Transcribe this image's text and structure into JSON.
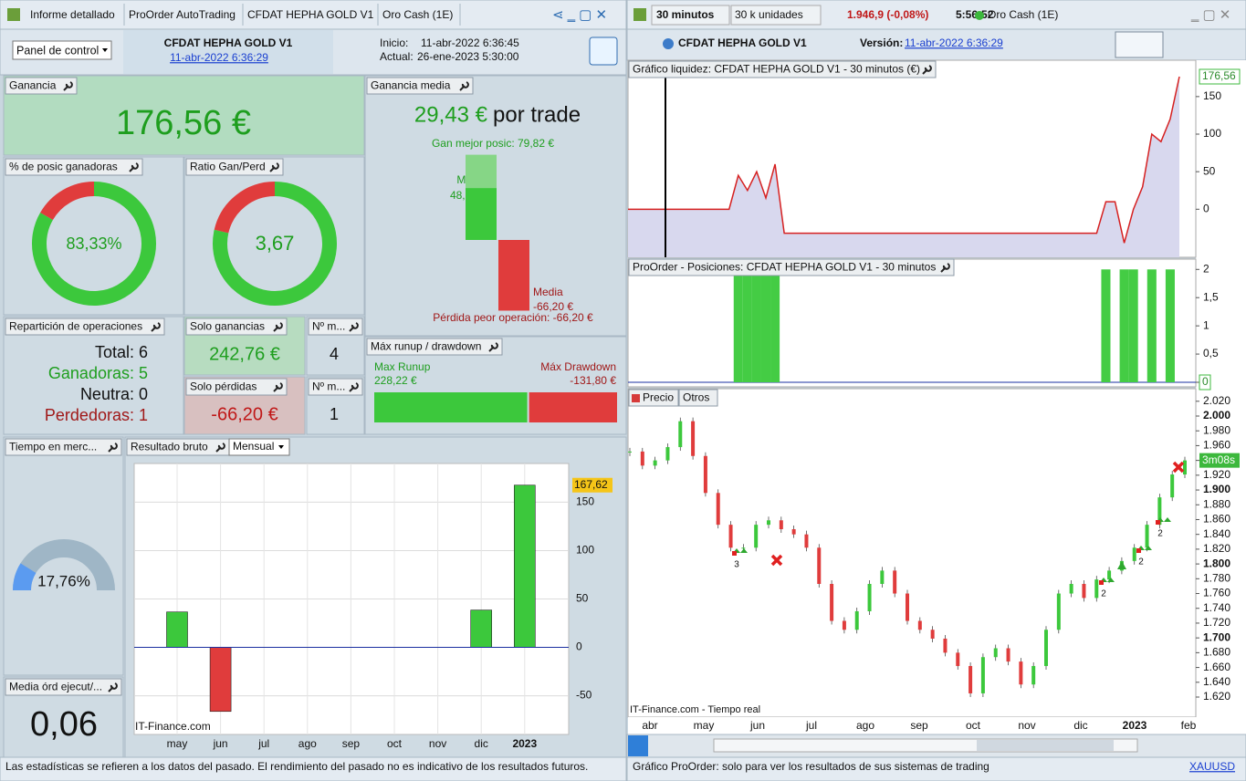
{
  "left": {
    "tabs": [
      "Informe detallado",
      "ProOrder AutoTrading",
      "CFDAT HEPHA GOLD V1",
      "Oro Cash (1E)"
    ],
    "header": {
      "dropdown": "Panel de control",
      "system": "CFDAT HEPHA GOLD V1",
      "version_link": "11-abr-2022 6:36:29",
      "start_label": "Inicio:",
      "start": "11-abr-2022 6:36:45",
      "current_label": "Actual:",
      "current": "26-ene-2023 5:30:00"
    },
    "ganancia": {
      "title": "Ganancia",
      "value": "176,56 €"
    },
    "ganancia_media": {
      "title": "Ganancia media",
      "value": "29,43 €",
      "unit": "por trade",
      "best_win": {
        "value": 79.82,
        "label": "Gan mejor posic: 79,82 €"
      },
      "avg_win_label": "Media",
      "avg_win": {
        "value": 48.55,
        "label": "48,55 €"
      },
      "avg_loss_label": "Media",
      "avg_loss": {
        "value": -66.2,
        "label": "-66,20 €"
      },
      "worst_loss": {
        "value": -66.2,
        "label": "Pérdida peor operación: -66,20 €"
      }
    },
    "pct_winners": {
      "title": "% de posic ganadoras",
      "value": 83.33,
      "label": "83,33%"
    },
    "ratio": {
      "title": "Ratio Gan/Perd",
      "value": 3.67,
      "label": "3,67"
    },
    "reparticion": {
      "title": "Repartición de operaciones",
      "rows": [
        {
          "label": "Total:",
          "value": 6
        },
        {
          "label": "Ganadoras:",
          "value": 5
        },
        {
          "label": "Neutra:",
          "value": 0
        },
        {
          "label": "Perdedoras:",
          "value": 1
        }
      ]
    },
    "solo_ganancias": {
      "title": "Solo ganancias",
      "value": "242,76 €"
    },
    "n_ganancias": {
      "title": "Nº m...",
      "value": 4
    },
    "solo_perdidas": {
      "title": "Solo pérdidas",
      "value": "-66,20 €"
    },
    "n_perdidas": {
      "title": "Nº m...",
      "value": 1
    },
    "runup": {
      "title": "Máx runup / drawdown",
      "runup_label": "Max Runup",
      "runup": {
        "value": 228.22,
        "label": "228,22 €"
      },
      "drawdown_label": "Máx Drawdown",
      "drawdown": {
        "value": -131.8,
        "label": "-131,80 €"
      }
    },
    "tiempo": {
      "title": "Tiempo en merc...",
      "value": 17.76,
      "label": "17,76%"
    },
    "media_ord": {
      "title": "Media órd ejecut/...",
      "value": "0,06"
    },
    "resultado": {
      "title": "Resultado bruto",
      "dropdown": "Mensual",
      "watermark": "IT-Finance.com",
      "chart": {
        "type": "bar",
        "categories": [
          "may",
          "jun",
          "jul",
          "ago",
          "sep",
          "oct",
          "nov",
          "dic",
          "2023"
        ],
        "values": [
          36.6,
          -66.2,
          null,
          null,
          null,
          null,
          null,
          38.54,
          167.62
        ],
        "last_value_label": "167,62",
        "ylim": [
          -90,
          190
        ],
        "yticks": [
          -50,
          0,
          50,
          100,
          150
        ],
        "grid": true,
        "colors": {
          "positive": "#3cc83c",
          "negative": "#e03c3c"
        }
      }
    },
    "footer": "Las estadísticas se refieren a los datos del pasado. El rendimiento del pasado no es indicativo de los resultados futuros."
  },
  "right": {
    "toolbar": {
      "timeframe": "30 minutos",
      "units": "30 k unidades",
      "price": "1.946,9 (-0,08%)",
      "time": "5:56:52",
      "instrument": "Oro Cash (1E)"
    },
    "header": {
      "system": "CFDAT HEPHA GOLD V1",
      "version_label": "Versión:",
      "version_link": "11-abr-2022 6:36:29"
    },
    "equity": {
      "title": "Gráfico liquidez: CFDAT HEPHA GOLD V1 - 30 minutos (€)",
      "chart": {
        "type": "area",
        "color": "#d62020",
        "fill": "#d8d8ee",
        "ylim": [
          -64,
          196
        ],
        "yticks": [
          0,
          50,
          100,
          150
        ],
        "last_value_label": "176,56",
        "values": [
          0,
          0,
          0,
          0,
          0,
          0,
          0,
          0,
          0,
          0,
          0,
          0,
          45,
          25,
          50,
          15,
          60,
          -32,
          -32,
          -32,
          -32,
          -32,
          -32,
          -32,
          -32,
          -32,
          -32,
          -32,
          -32,
          -32,
          -32,
          -32,
          -32,
          -32,
          -32,
          -32,
          -32,
          -32,
          -32,
          -32,
          -32,
          -32,
          -32,
          -32,
          -32,
          -32,
          -32,
          -32,
          -32,
          -32,
          -32,
          -32,
          10,
          10,
          -45,
          0,
          30,
          100,
          90,
          120,
          176.56
        ]
      }
    },
    "positions": {
      "title": "ProOrder - Posiciones: CFDAT HEPHA GOLD V1 - 30 minutos",
      "chart": {
        "type": "bar",
        "color": "#44cc44",
        "ylim": [
          0,
          2.15
        ],
        "yticks": [
          0,
          {
            "value": 0.5,
            "label": "0,5"
          },
          1,
          {
            "value": 1.5,
            "label": "1,5"
          },
          2
        ],
        "values": [
          0,
          0,
          0,
          0,
          0,
          0,
          0,
          0,
          0,
          0,
          0,
          0,
          2,
          2,
          2,
          2,
          2,
          0,
          0,
          0,
          0,
          0,
          0,
          0,
          0,
          0,
          0,
          0,
          0,
          0,
          0,
          0,
          0,
          0,
          0,
          0,
          0,
          0,
          0,
          0,
          0,
          0,
          0,
          0,
          0,
          0,
          0,
          0,
          0,
          0,
          0,
          0,
          2,
          0,
          2,
          2,
          0,
          2,
          0,
          2,
          0
        ]
      }
    },
    "price": {
      "tabs": [
        "Precio",
        "Otros"
      ],
      "watermark": "IT-Finance.com - Tiempo real",
      "countdown": "3m08s",
      "chart": {
        "type": "candlestick",
        "categories": [
          "abr",
          "may",
          "jun",
          "jul",
          "ago",
          "sep",
          "oct",
          "nov",
          "dic",
          "2023",
          "feb"
        ],
        "ylim": [
          1569,
          2035
        ],
        "yticks": [
          {
            "value": 2020,
            "label": "2.020"
          },
          {
            "value": 2000,
            "label": "2.000"
          },
          {
            "value": 1980,
            "label": "1.980"
          },
          {
            "value": 1960,
            "label": "1.960"
          },
          {
            "value": 1940,
            "label": "1.940"
          },
          {
            "value": 1920,
            "label": "1.920"
          },
          {
            "value": 1900,
            "label": "1.900"
          },
          {
            "value": 1880,
            "label": "1.880"
          },
          {
            "value": 1860,
            "label": "1.860"
          },
          {
            "value": 1840,
            "label": "1.840"
          },
          {
            "value": 1820,
            "label": "1.820"
          },
          {
            "value": 1800,
            "label": "1.800"
          },
          {
            "value": 1780,
            "label": "1.780"
          },
          {
            "value": 1760,
            "label": "1.760"
          },
          {
            "value": 1740,
            "label": "1.740"
          },
          {
            "value": 1720,
            "label": "1.720"
          },
          {
            "value": 1700,
            "label": "1.700"
          },
          {
            "value": 1680,
            "label": "1.680"
          },
          {
            "value": 1660,
            "label": "1.660"
          },
          {
            "value": 1640,
            "label": "1.640"
          },
          {
            "value": 1620,
            "label": "1.620"
          }
        ],
        "values": [
          1952,
          1933,
          1940,
          1958,
          1993,
          1946,
          1896,
          1853,
          1822,
          1822,
          1853,
          1859,
          1847,
          1840,
          1822,
          1773,
          1723,
          1711,
          1736,
          1773,
          1791,
          1760,
          1723,
          1711,
          1699,
          1680,
          1662,
          1625,
          1674,
          1686,
          1668,
          1637,
          1662,
          1711,
          1760,
          1773,
          1754,
          1779,
          1791,
          1804,
          1822,
          1853,
          1890,
          1921,
          1940
        ],
        "annotations": [
          3,
          2,
          2,
          2
        ]
      }
    },
    "status": "Gráfico ProOrder: solo para ver los resultados de sus sistemas de trading",
    "symbol": "XAUUSD"
  }
}
